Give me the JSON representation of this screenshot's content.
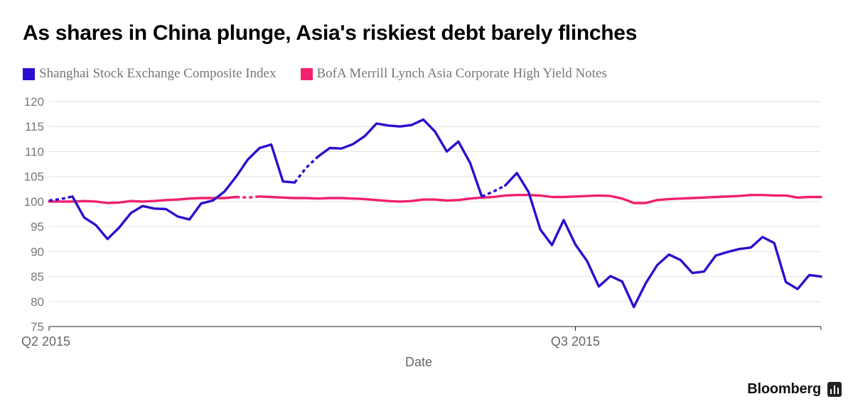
{
  "title": "As shares in China plunge, Asia's riskiest debt barely flinches",
  "legend": [
    {
      "label": "Shanghai Stock Exchange Composite Index",
      "color": "#2a0fd0"
    },
    {
      "label": "BofA Merrill Lynch Asia Corporate High Yield Notes",
      "color": "#f0206e"
    }
  ],
  "brand": "Bloomberg",
  "chart_data": {
    "type": "line",
    "title": "As shares in China plunge, Asia's riskiest debt barely flinches",
    "xlabel": "Date",
    "ylabel": "",
    "ylim": [
      75,
      120
    ],
    "yticks": [
      75,
      80,
      85,
      90,
      95,
      100,
      105,
      110,
      115,
      120
    ],
    "xlim": [
      0,
      66
    ],
    "xticks": [
      {
        "x": 0,
        "label": "Q2 2015"
      },
      {
        "x": 45,
        "label": "Q3 2015"
      }
    ],
    "grid": true,
    "legend_position": "top",
    "series": [
      {
        "name": "Shanghai Stock Exchange Composite Index",
        "color": "#2a0fd0",
        "dashed_ranges": [
          [
            0,
            2
          ],
          [
            21,
            23
          ],
          [
            37,
            39
          ]
        ],
        "x": [
          0,
          1,
          2,
          3,
          4,
          5,
          6,
          7,
          8,
          9,
          10,
          11,
          12,
          13,
          14,
          15,
          16,
          17,
          18,
          19,
          20,
          21,
          22,
          23,
          24,
          25,
          26,
          27,
          28,
          29,
          30,
          31,
          32,
          33,
          34,
          35,
          36,
          37,
          38,
          39,
          40,
          41,
          42,
          43,
          44,
          45,
          46,
          47,
          48,
          49,
          50,
          51,
          52,
          53,
          54,
          55,
          56,
          57,
          58,
          59,
          60,
          61,
          62,
          63,
          64,
          65,
          66
        ],
        "y": [
          100.2,
          100.5,
          101.0,
          96.8,
          95.3,
          92.5,
          94.8,
          97.7,
          99.1,
          98.6,
          98.5,
          97.0,
          96.4,
          99.6,
          100.2,
          102.0,
          105.0,
          108.4,
          110.7,
          111.4,
          104.0,
          103.8,
          106.8,
          109.0,
          110.7,
          110.6,
          111.5,
          113.1,
          115.6,
          115.2,
          115.0,
          115.3,
          116.4,
          114.0,
          110.0,
          112.0,
          107.7,
          101.0,
          102.0,
          103.2,
          105.7,
          101.9,
          94.4,
          91.3,
          96.3,
          91.4,
          88.1,
          83.0,
          85.1,
          84.0,
          78.9,
          83.6,
          87.3,
          89.4,
          88.3,
          85.7,
          86.0,
          89.2,
          89.9,
          90.5,
          90.8,
          92.9,
          91.7,
          83.9,
          82.5,
          85.3,
          85.0
        ]
      },
      {
        "name": "BofA Merrill Lynch Asia Corporate High Yield Notes",
        "color": "#f0206e",
        "dashed_ranges": [
          [
            16,
            18
          ]
        ],
        "x": [
          0,
          1,
          2,
          3,
          4,
          5,
          6,
          7,
          8,
          9,
          10,
          11,
          12,
          13,
          14,
          15,
          16,
          17,
          18,
          19,
          20,
          21,
          22,
          23,
          24,
          25,
          26,
          27,
          28,
          29,
          30,
          31,
          32,
          33,
          34,
          35,
          36,
          37,
          38,
          39,
          40,
          41,
          42,
          43,
          44,
          45,
          46,
          47,
          48,
          49,
          50,
          51,
          52,
          53,
          54,
          55,
          56,
          57,
          58,
          59,
          60,
          61,
          62,
          63,
          64,
          65,
          66
        ],
        "y": [
          100.0,
          100.0,
          100.0,
          100.1,
          100.0,
          99.7,
          99.8,
          100.1,
          100.0,
          100.1,
          100.3,
          100.4,
          100.6,
          100.7,
          100.7,
          100.7,
          100.9,
          100.8,
          101.0,
          100.9,
          100.8,
          100.7,
          100.7,
          100.6,
          100.7,
          100.7,
          100.6,
          100.5,
          100.3,
          100.1,
          100.0,
          100.1,
          100.4,
          100.4,
          100.2,
          100.3,
          100.6,
          100.8,
          100.9,
          101.2,
          101.3,
          101.3,
          101.2,
          100.9,
          100.9,
          101.0,
          101.1,
          101.2,
          101.1,
          100.6,
          99.7,
          99.7,
          100.3,
          100.5,
          100.6,
          100.7,
          100.8,
          100.9,
          101.0,
          101.1,
          101.3,
          101.3,
          101.2,
          101.2,
          100.8,
          100.9,
          100.9
        ]
      }
    ]
  }
}
